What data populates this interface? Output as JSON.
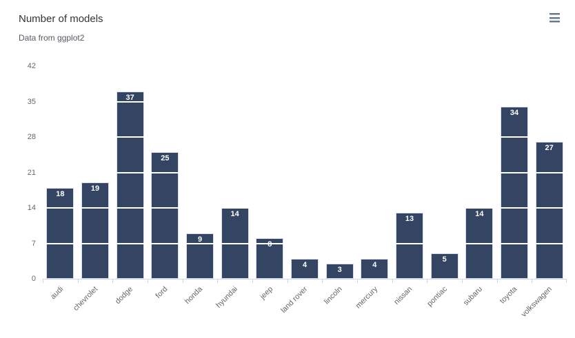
{
  "header": {
    "title": "Number of models",
    "subtitle": "Data from ggplot2",
    "menu_icon": "hamburger-menu-icon"
  },
  "chart_data": {
    "type": "bar",
    "title": "Number of models",
    "subtitle": "Data from ggplot2",
    "categories": [
      "audi",
      "chevrolet",
      "dodge",
      "ford",
      "honda",
      "hyundai",
      "jeep",
      "land rover",
      "lincoln",
      "mercury",
      "nissan",
      "pontiac",
      "subaru",
      "toyota",
      "volkswagen"
    ],
    "values": [
      18,
      19,
      37,
      25,
      9,
      14,
      8,
      4,
      3,
      4,
      13,
      5,
      14,
      34,
      27
    ],
    "xlabel": "",
    "ylabel": "",
    "ylim": [
      0,
      42
    ],
    "yticks": [
      0,
      7,
      14,
      21,
      28,
      35,
      42
    ],
    "legend": "none",
    "grid": "horizontal white gridlines drawn above bars",
    "x_label_rotation": -45,
    "colors": {
      "bar": "#344563",
      "bar_border": "#d9e0ea",
      "gridline": "#ffffff",
      "axis_line": "#ccd6eb",
      "axis_text": "#666666",
      "title_text": "#333333",
      "subtitle_text": "#555a61",
      "data_label": "#ffffff",
      "menu_icon": "#66788e"
    }
  }
}
